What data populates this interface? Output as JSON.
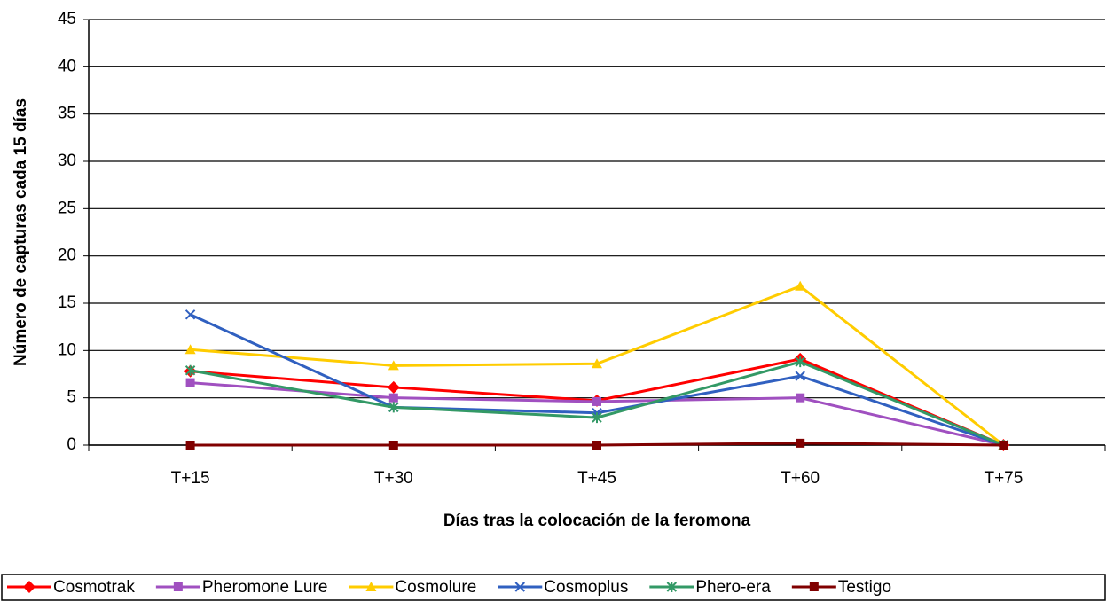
{
  "chart_data": {
    "type": "line",
    "x_label": "Días tras la colocación de la feromona",
    "y_label": "Número de capturas cada 15 días",
    "categories": [
      "T+15",
      "T+30",
      "T+45",
      "T+60",
      "T+75"
    ],
    "ylim": [
      0,
      45
    ],
    "yticks": [
      0,
      5,
      10,
      15,
      20,
      25,
      30,
      35,
      40,
      45
    ],
    "grid": true,
    "series": [
      {
        "name": "Cosmotrak",
        "color": "#ff0000",
        "marker": "diamond",
        "values": [
          7.8,
          6.1,
          4.7,
          9.1,
          0
        ]
      },
      {
        "name": "Pheromone Lure",
        "color": "#a050c0",
        "marker": "square",
        "values": [
          6.6,
          5.0,
          4.6,
          5.0,
          0
        ]
      },
      {
        "name": "Cosmolure",
        "color": "#ffcc00",
        "marker": "triangle",
        "values": [
          10.1,
          8.4,
          8.6,
          16.8,
          0
        ]
      },
      {
        "name": "Cosmoplus",
        "color": "#3060c0",
        "marker": "x",
        "values": [
          13.8,
          4.0,
          3.4,
          7.3,
          0
        ]
      },
      {
        "name": "Phero-era",
        "color": "#339966",
        "marker": "star",
        "values": [
          7.9,
          4.0,
          2.9,
          8.8,
          0
        ]
      },
      {
        "name": "Testigo",
        "color": "#800000",
        "marker": "square",
        "values": [
          0,
          0,
          0,
          0.2,
          0
        ]
      }
    ]
  }
}
